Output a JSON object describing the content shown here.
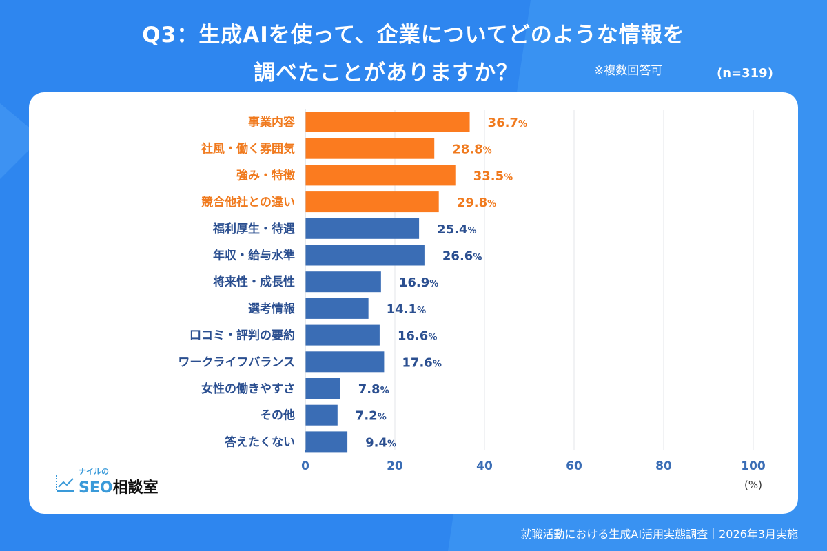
{
  "title_line1": "Q3：生成AIを使って、企業についてどのような情報を",
  "title_line2": "調べたことがありますか？",
  "note": "※複数回答可",
  "sample": "(n=319)",
  "footer": "就職活動における生成AI活用実態調査｜2026年3月実施",
  "logo": {
    "small": "ナイルの",
    "seo": "SEO",
    "ja": "相談室"
  },
  "colors": {
    "background": "#2e86ef",
    "highlight": "#fb7b1f",
    "bar": "#3a6db5",
    "highlight_label": "#f07a1e",
    "label": "#2b4f90",
    "axis": "#3a6db5"
  },
  "chart_data": {
    "type": "bar",
    "orientation": "horizontal",
    "categories": [
      "事業内容",
      "社風・働く雰囲気",
      "強み・特徴",
      "競合他社との違い",
      "福利厚生・待遇",
      "年収・給与水準",
      "将来性・成長性",
      "選考情報",
      "口コミ・評判の要約",
      "ワークライフバランス",
      "女性の働きやすさ",
      "その他",
      "答えたくない"
    ],
    "values": [
      36.7,
      28.8,
      33.5,
      29.8,
      25.4,
      26.6,
      16.9,
      14.1,
      16.6,
      17.6,
      7.8,
      7.2,
      9.4
    ],
    "highlighted": [
      true,
      true,
      true,
      true,
      false,
      false,
      false,
      false,
      false,
      false,
      false,
      false,
      false
    ],
    "value_suffix": "%",
    "xlim": [
      0,
      100
    ],
    "xticks": [
      0,
      20,
      40,
      60,
      80,
      100
    ],
    "xlabel": "(%)",
    "grid": true
  }
}
